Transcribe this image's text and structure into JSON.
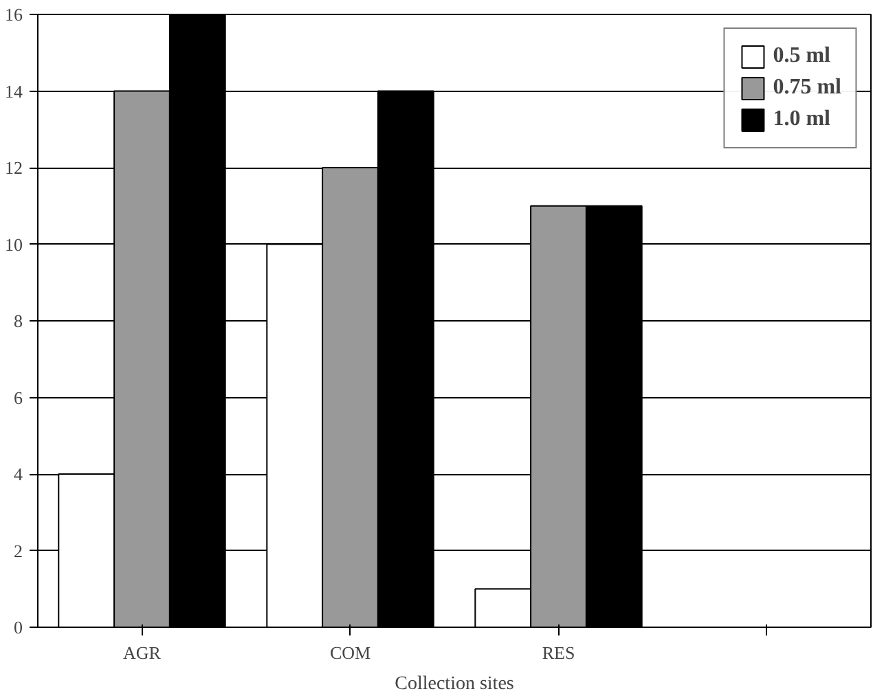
{
  "chart_data": {
    "type": "bar",
    "xlabel": "Collection sites",
    "categories": [
      "AGR",
      "COM",
      "RES",
      null
    ],
    "series": [
      {
        "name": "0.5 ml",
        "color": "#ffffff",
        "values": [
          4,
          10,
          1,
          null
        ]
      },
      {
        "name": "0.75 ml",
        "color": "#999999",
        "values": [
          14,
          12,
          11,
          null
        ]
      },
      {
        "name": "1.0 ml",
        "color": "#000000",
        "values": [
          16,
          14,
          11,
          null
        ]
      }
    ],
    "ylim": [
      0,
      16
    ],
    "yticks": [
      0,
      2,
      4,
      6,
      8,
      10,
      12,
      14,
      16
    ],
    "grid": "y",
    "legend": "top right"
  }
}
